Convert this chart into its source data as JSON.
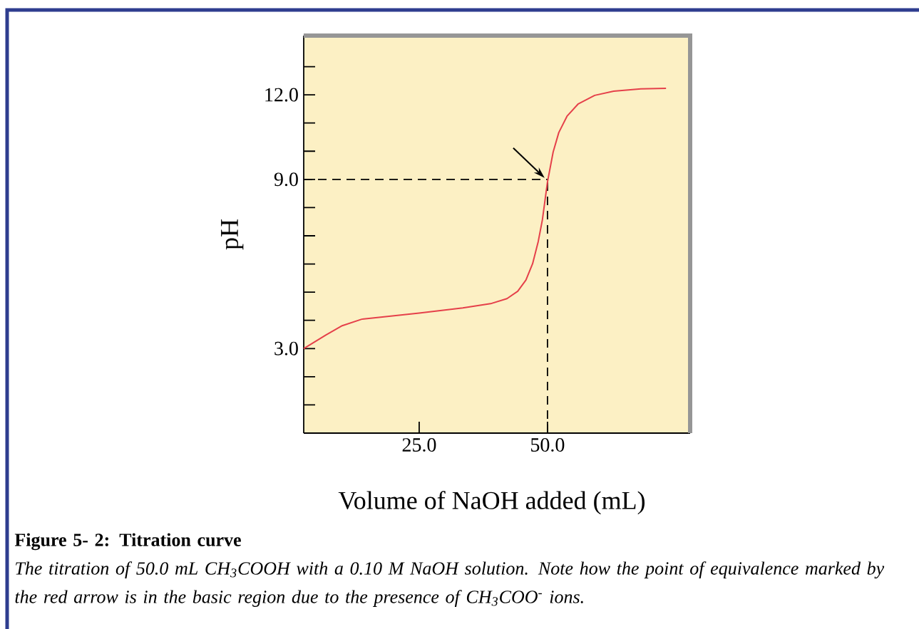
{
  "chart_data": {
    "type": "line",
    "xlabel": "Volume of NaOH added (mL)",
    "ylabel": "pH",
    "x": [
      2.5,
      6.8,
      10.0,
      13.8,
      17.5,
      25.0,
      33.5,
      38.9,
      42.1,
      44.2,
      45.8,
      47.1,
      48.2,
      49.0,
      50.0,
      51.1,
      52.2,
      53.8,
      56.0,
      59.2,
      62.9,
      68.2,
      73.1
    ],
    "series": [
      {
        "color": "#e5404a",
        "values": [
          3.0,
          3.48,
          3.81,
          4.04,
          4.11,
          4.26,
          4.44,
          4.59,
          4.77,
          5.03,
          5.43,
          6.01,
          6.8,
          7.56,
          8.91,
          9.97,
          10.66,
          11.24,
          11.68,
          11.98,
          12.13,
          12.21,
          12.23
        ]
      }
    ],
    "xlim": [
      2.5,
      77.8
    ],
    "ylim": [
      0,
      14.1
    ],
    "xticks": [
      {
        "value": 25,
        "label": "25.0"
      },
      {
        "value": 50,
        "label": "50.0"
      }
    ],
    "yticks": [
      {
        "value": 1,
        "label": null
      },
      {
        "value": 2,
        "label": null
      },
      {
        "value": 3,
        "label": "3.0"
      },
      {
        "value": 4,
        "label": null
      },
      {
        "value": 5,
        "label": null
      },
      {
        "value": 6,
        "label": null
      },
      {
        "value": 7,
        "label": null
      },
      {
        "value": 8,
        "label": null
      },
      {
        "value": 9,
        "label": "9.0"
      },
      {
        "value": 10,
        "label": null
      },
      {
        "value": 11,
        "label": null
      },
      {
        "value": 12,
        "label": "12.0"
      },
      {
        "value": 13,
        "label": null
      }
    ],
    "ref_lines": [
      {
        "axis": "y",
        "value": 9,
        "line_style": "dashed"
      },
      {
        "axis": "x",
        "value": 50,
        "line_style": "dashed"
      }
    ],
    "annotations": [
      "Figure 5- 2: Titration curve",
      "The titration of 50.0 mL CH$_{3}$COOH with a 0.10 M NaOH solution. Note how the point of equivalence marked by the red arrow is in the basic region due to the presence of CH$_{3}$COO$^{-}$ ions."
    ]
  }
}
